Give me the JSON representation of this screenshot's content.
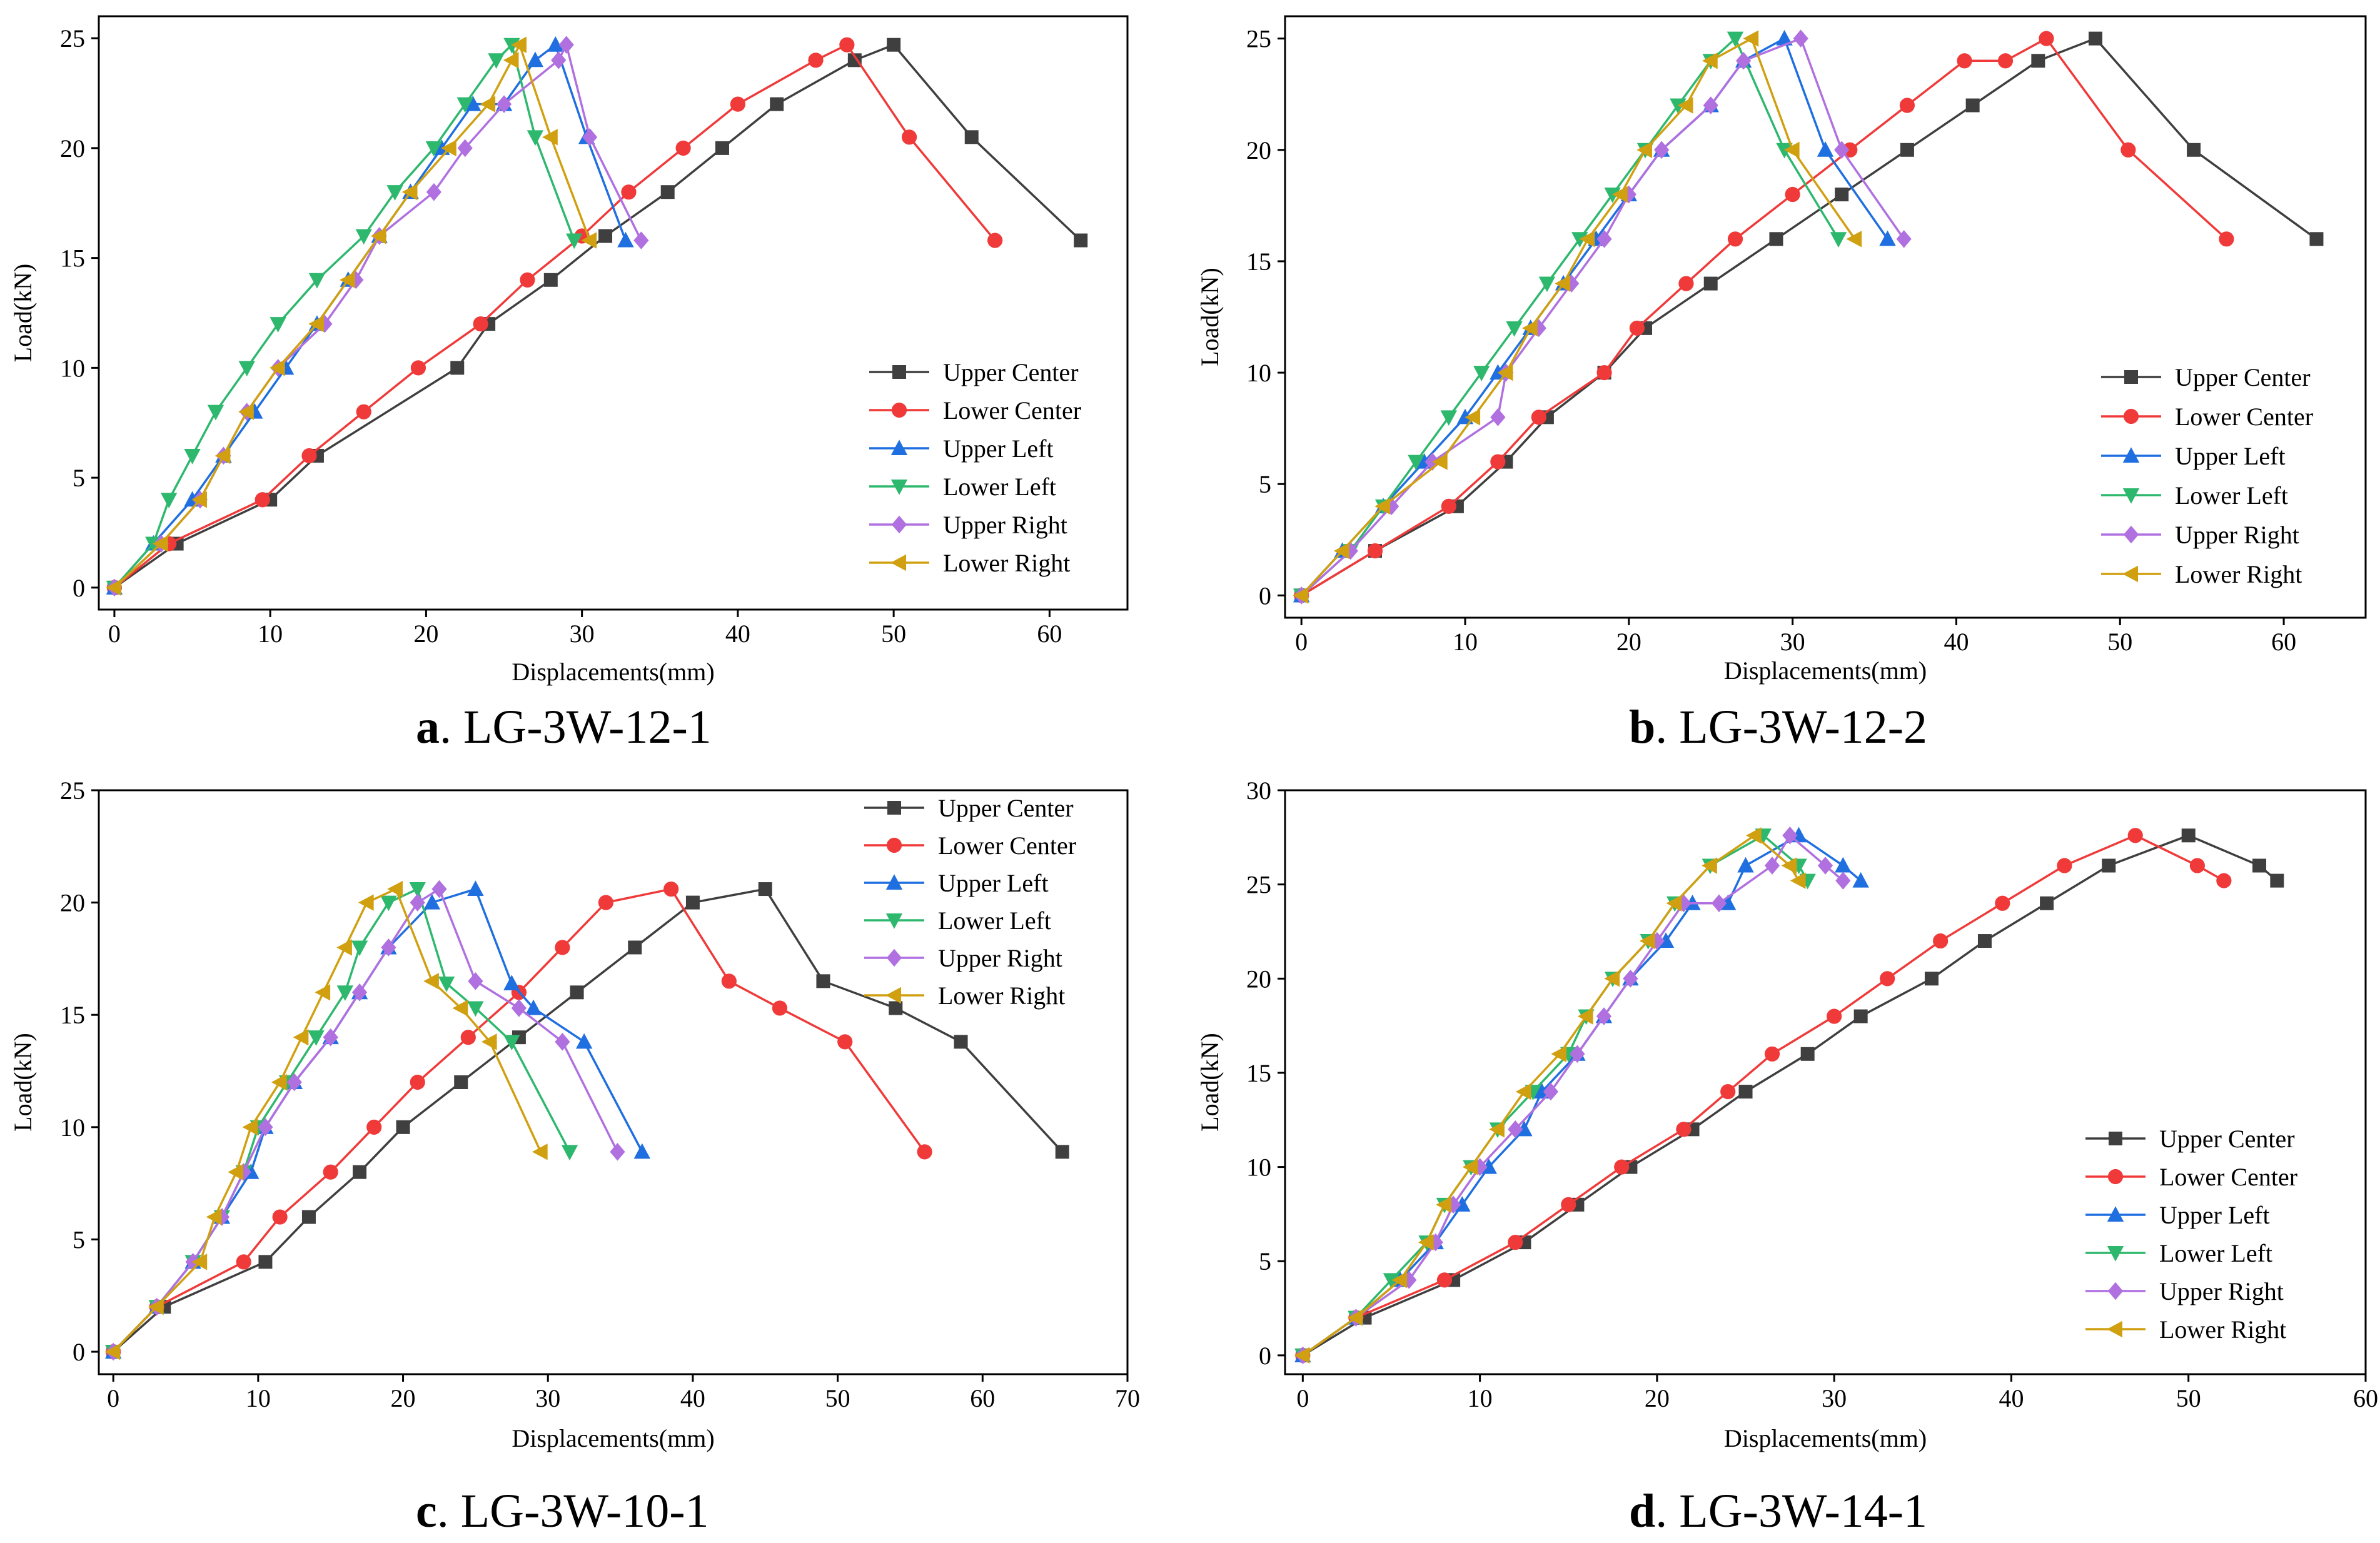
{
  "series_styles": [
    {
      "name": "Upper Center",
      "color": "#3f3f3f",
      "marker": "square"
    },
    {
      "name": "Lower Center",
      "color": "#f03a3a",
      "marker": "circle"
    },
    {
      "name": "Upper Left",
      "color": "#1f6fe0",
      "marker": "triangle-up"
    },
    {
      "name": "Lower Left",
      "color": "#2eb86e",
      "marker": "triangle-down"
    },
    {
      "name": "Upper Right",
      "color": "#b070e0",
      "marker": "diamond"
    },
    {
      "name": "Lower Right",
      "color": "#d0a010",
      "marker": "triangle-left"
    }
  ],
  "chart_data": [
    {
      "type": "line",
      "caption_letter": "a",
      "caption_text": ". LG-3W-12-1",
      "xlabel": "Displacements(mm)",
      "ylabel": "Load(kN)",
      "xlim": [
        -1,
        65
      ],
      "ylim": [
        -1,
        26
      ],
      "xticks": [
        0,
        10,
        20,
        30,
        40,
        50,
        60
      ],
      "yticks": [
        0,
        5,
        10,
        15,
        20,
        25
      ],
      "legend_position": "lower-right",
      "series": [
        {
          "name": "Upper Center",
          "x": [
            0,
            4,
            10,
            13,
            22,
            24,
            28,
            31.5,
            35.5,
            39,
            42.5,
            47.5,
            50,
            55,
            62
          ],
          "y": [
            0,
            2,
            4,
            6,
            10,
            12,
            14,
            16,
            18,
            20,
            22,
            24,
            24.7,
            20.5,
            15.8
          ]
        },
        {
          "name": "Lower Center",
          "x": [
            0,
            3.5,
            9.5,
            12.5,
            16,
            19.5,
            23.5,
            26.5,
            30,
            33,
            36.5,
            40,
            45,
            47,
            51,
            56.5
          ],
          "y": [
            0,
            2,
            4,
            6,
            8,
            10,
            12,
            14,
            16,
            18,
            20,
            22,
            24,
            24.7,
            20.5,
            15.8
          ]
        },
        {
          "name": "Upper Left",
          "x": [
            0,
            2.5,
            5,
            7,
            9,
            11,
            13,
            15,
            17,
            19,
            21,
            23,
            25,
            27,
            28.3,
            30.3,
            32.8
          ],
          "y": [
            0,
            2,
            4,
            6,
            8,
            10,
            12,
            14,
            16,
            18,
            20,
            22,
            22,
            24,
            24.7,
            20.5,
            15.8
          ]
        },
        {
          "name": "Lower Left",
          "x": [
            0,
            2.5,
            3.5,
            5,
            6.5,
            8.5,
            10.5,
            13,
            16,
            18,
            20.5,
            22.5,
            24.5,
            25.5,
            27,
            29.5
          ],
          "y": [
            0,
            2,
            4,
            6,
            8,
            10,
            12,
            14,
            16,
            18,
            20,
            22,
            24,
            24.7,
            20.5,
            15.8
          ]
        },
        {
          "name": "Upper Right",
          "x": [
            0,
            3,
            5.5,
            7,
            8.5,
            10.5,
            13.5,
            15.5,
            17,
            20.5,
            22.5,
            25,
            28.5,
            29,
            30.5,
            33.8
          ],
          "y": [
            0,
            2,
            4,
            6,
            8,
            10,
            12,
            14,
            16,
            18,
            20,
            22,
            24,
            24.7,
            20.5,
            15.8
          ]
        },
        {
          "name": "Lower Right",
          "x": [
            0,
            3,
            5.5,
            7,
            8.5,
            10.5,
            13,
            15,
            17,
            19,
            21.5,
            24,
            25.5,
            26,
            28,
            30.5
          ],
          "y": [
            0,
            2,
            4,
            6,
            8,
            10,
            12,
            14,
            16,
            18,
            20,
            22,
            24,
            24.7,
            20.5,
            15.8
          ]
        }
      ]
    },
    {
      "type": "line",
      "caption_letter": "b",
      "caption_text": ". LG-3W-12-2",
      "xlabel": "Displacements(mm)",
      "ylabel": "Load(kN)",
      "xlim": [
        -1,
        65
      ],
      "ylim": [
        -1,
        26
      ],
      "xticks": [
        0,
        10,
        20,
        30,
        40,
        50,
        60
      ],
      "yticks": [
        0,
        5,
        10,
        15,
        20,
        25
      ],
      "legend_position": "lower-right",
      "series": [
        {
          "name": "Upper Center",
          "x": [
            0,
            4.5,
            9.5,
            12.5,
            15,
            18.5,
            21,
            25,
            29,
            33,
            37,
            41,
            45,
            48.5,
            54.5,
            62
          ],
          "y": [
            0,
            2,
            4,
            6,
            8,
            10,
            12,
            14,
            16,
            18,
            20,
            22,
            24,
            25,
            20,
            16
          ]
        },
        {
          "name": "Lower Center",
          "x": [
            0,
            4.5,
            9,
            12,
            14.5,
            18.5,
            20.5,
            23.5,
            26.5,
            30,
            33.5,
            37,
            40.5,
            43,
            45.5,
            50.5,
            56.5
          ],
          "y": [
            0,
            2,
            4,
            6,
            8,
            10,
            12,
            14,
            16,
            18,
            20,
            22,
            24,
            24,
            25,
            20,
            16
          ]
        },
        {
          "name": "Upper Left",
          "x": [
            0,
            2.5,
            5,
            7.5,
            10,
            12,
            14,
            16,
            18,
            20,
            22,
            25,
            27,
            29.5,
            32,
            35.8
          ],
          "y": [
            0,
            2,
            4,
            6,
            8,
            10,
            12,
            14,
            16,
            18,
            20,
            22,
            24,
            25,
            20,
            16
          ]
        },
        {
          "name": "Lower Left",
          "x": [
            0,
            3,
            5,
            7,
            9,
            11,
            13,
            15,
            17,
            19,
            21,
            23,
            25,
            26.5,
            29.5,
            32.8
          ],
          "y": [
            0,
            2,
            4,
            6,
            8,
            10,
            12,
            14,
            16,
            18,
            20,
            22,
            24,
            25,
            20,
            16
          ]
        },
        {
          "name": "Upper Right",
          "x": [
            0,
            3,
            5.5,
            8,
            12,
            12.5,
            14.5,
            16.5,
            18.5,
            20,
            22,
            25,
            27,
            30.5,
            33,
            36.8
          ],
          "y": [
            0,
            2,
            4,
            6,
            8,
            10,
            12,
            14,
            16,
            18,
            20,
            22,
            24,
            25,
            20,
            16
          ]
        },
        {
          "name": "Lower Right",
          "x": [
            0,
            2.5,
            5,
            8.5,
            10.5,
            12.5,
            14,
            16,
            17.5,
            19.5,
            21,
            23.5,
            25,
            27.5,
            30,
            33.8
          ],
          "y": [
            0,
            2,
            4,
            6,
            8,
            10,
            12,
            14,
            16,
            18,
            20,
            22,
            24,
            25,
            20,
            16
          ]
        }
      ]
    },
    {
      "type": "line",
      "caption_letter": "c",
      "caption_text": ". LG-3W-10-1",
      "xlabel": "Displacements(mm)",
      "ylabel": "Load(kN)",
      "xlim": [
        -1,
        70
      ],
      "ylim": [
        -1,
        25
      ],
      "xticks": [
        0,
        10,
        20,
        30,
        40,
        50,
        60,
        70
      ],
      "yticks": [
        0,
        5,
        10,
        15,
        20,
        25
      ],
      "legend_position": "upper-right",
      "series": [
        {
          "name": "Upper Center",
          "x": [
            0,
            3.5,
            10.5,
            13.5,
            17,
            20,
            24,
            28,
            32,
            36,
            40,
            45,
            49,
            54,
            58.5,
            65.5
          ],
          "y": [
            0,
            2,
            4,
            6,
            8,
            10,
            12,
            14,
            16,
            18,
            20,
            20.6,
            16.5,
            15.3,
            13.8,
            8.9
          ]
        },
        {
          "name": "Lower Center",
          "x": [
            0,
            3,
            9,
            11.5,
            15,
            18,
            21,
            24.5,
            28,
            31,
            34,
            38.5,
            42.5,
            46,
            50.5,
            56
          ],
          "y": [
            0,
            2,
            4,
            6,
            8,
            10,
            12,
            14,
            16,
            18,
            20,
            20.6,
            16.5,
            15.3,
            13.8,
            8.9
          ]
        },
        {
          "name": "Upper Left",
          "x": [
            0,
            3,
            5.5,
            7.5,
            9.5,
            10.5,
            12.5,
            15,
            17,
            19,
            22,
            25,
            27.5,
            29,
            32.5,
            36.5
          ],
          "y": [
            0,
            2,
            4,
            6,
            8,
            10,
            12,
            14,
            16,
            18,
            20,
            20.6,
            16.4,
            15.3,
            13.8,
            8.9
          ]
        },
        {
          "name": "Lower Left",
          "x": [
            0,
            3,
            5.5,
            7.5,
            9,
            10,
            12,
            14,
            16,
            17,
            19,
            21,
            23,
            25,
            27.5,
            31.5
          ],
          "y": [
            0,
            2,
            4,
            6,
            8,
            10,
            12,
            14,
            16,
            18,
            20,
            20.6,
            16.4,
            15.3,
            13.8,
            8.9
          ]
        },
        {
          "name": "Upper Right",
          "x": [
            0,
            3,
            5.5,
            7.5,
            9,
            10.5,
            12.5,
            15,
            17,
            19,
            21,
            22.5,
            25,
            28,
            31,
            34.8
          ],
          "y": [
            0,
            2,
            4,
            6,
            8,
            10,
            12,
            14,
            16,
            18,
            20,
            20.6,
            16.5,
            15.3,
            13.8,
            8.9
          ]
        },
        {
          "name": "Lower Right",
          "x": [
            0,
            3,
            6,
            7,
            8.5,
            9.5,
            11.5,
            13,
            14.5,
            16,
            17.5,
            19.5,
            22,
            24,
            26,
            29.5
          ],
          "y": [
            0,
            2,
            4,
            6,
            8,
            10,
            12,
            14,
            16,
            18,
            20,
            20.6,
            16.5,
            15.3,
            13.8,
            8.9
          ]
        }
      ]
    },
    {
      "type": "line",
      "caption_letter": "d",
      "caption_text": ". LG-3W-14-1",
      "xlabel": "Displacements(mm)",
      "ylabel": "Load(kN)",
      "xlim": [
        -1,
        60
      ],
      "ylim": [
        -1,
        30
      ],
      "xticks": [
        0,
        10,
        20,
        30,
        40,
        50,
        60
      ],
      "yticks": [
        0,
        5,
        10,
        15,
        20,
        25,
        30
      ],
      "legend_position": "lower-right",
      "series": [
        {
          "name": "Upper Center",
          "x": [
            0,
            3.5,
            8.5,
            12.5,
            15.5,
            18.5,
            22,
            25,
            28.5,
            31.5,
            35.5,
            38.5,
            42,
            45.5,
            50,
            54,
            55
          ],
          "y": [
            0,
            2,
            4,
            6,
            8,
            10,
            12,
            14,
            16,
            18,
            20,
            22,
            24,
            26,
            27.6,
            26,
            25.2
          ]
        },
        {
          "name": "Lower Center",
          "x": [
            0,
            3,
            8,
            12,
            15,
            18,
            21.5,
            24,
            26.5,
            30,
            33,
            36,
            39.5,
            43,
            47,
            50.5,
            52
          ],
          "y": [
            0,
            2,
            4,
            6,
            8,
            10,
            12,
            14,
            16,
            18,
            20,
            22,
            24,
            26,
            27.6,
            26,
            25.2
          ]
        },
        {
          "name": "Upper Left",
          "x": [
            0,
            3,
            5.5,
            7.5,
            9,
            10.5,
            12.5,
            13.5,
            15.5,
            17,
            18.5,
            20.5,
            22,
            24,
            25,
            28,
            30.5,
            31.5
          ],
          "y": [
            0,
            2,
            4,
            6,
            8,
            10,
            12,
            14,
            16,
            18,
            20,
            22,
            24,
            24,
            26,
            27.6,
            26,
            25.2
          ]
        },
        {
          "name": "Lower Left",
          "x": [
            0,
            3,
            5,
            7,
            8,
            9.5,
            11,
            13,
            15,
            16,
            17.5,
            19.5,
            21,
            23,
            26,
            28,
            28.5
          ],
          "y": [
            0,
            2,
            4,
            6,
            8,
            10,
            12,
            14,
            16,
            18,
            20,
            22,
            24,
            26,
            27.6,
            26,
            25.2
          ]
        },
        {
          "name": "Upper Right",
          "x": [
            0,
            3,
            6,
            7.5,
            8.5,
            10,
            12,
            14,
            15.5,
            17,
            18.5,
            20,
            21.5,
            23.5,
            26.5,
            27.5,
            29.5,
            30.5
          ],
          "y": [
            0,
            2,
            4,
            6,
            8,
            10,
            12,
            14,
            16,
            18,
            20,
            22,
            24,
            24,
            26,
            27.6,
            26,
            25.2
          ]
        },
        {
          "name": "Lower Right",
          "x": [
            0,
            3,
            5.5,
            7,
            8,
            9.5,
            11,
            12.5,
            14.5,
            16,
            17.5,
            19.5,
            21,
            23,
            25.5,
            27.5,
            28
          ],
          "y": [
            0,
            2,
            4,
            6,
            8,
            10,
            12,
            14,
            16,
            18,
            20,
            22,
            24,
            26,
            27.6,
            26,
            25.2
          ]
        }
      ]
    }
  ]
}
